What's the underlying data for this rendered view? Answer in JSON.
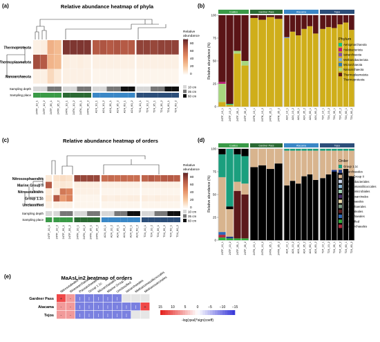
{
  "colors": {
    "heat": [
      "#fdf5ec",
      "#f7c79d",
      "#e48d63",
      "#b55a45",
      "#6b2a2a"
    ],
    "place": {
      "Coatico": "#3a9a47",
      "Gardner Pass": "#2b6a34",
      "Atacama": "#3a87c6",
      "Tejos": "#2c4e79"
    },
    "depth": {
      "10 cm": "#d7d7d7",
      "35 cm": "#777777",
      "60 cm": "#101010"
    },
    "phylum": {
      "Aenigmarchaeota": "#18c178",
      "Halobacteriota": "#c1197b",
      "Iainarchaeota": "#7b4fb1",
      "Methanobacteriota": "#7fa8d8",
      "Micrarchaeota": "#2c78b5",
      "Nanoarchaeota": "#a7d67f",
      "Thermoplasmatota": "#5a1416",
      "Thermoproteota": "#cfae1a"
    },
    "order": {
      "Group 1.1c": "#1b9f7e",
      "Iainarchaeales": "#213a86",
      "Marine Group II": "#d8b48e",
      "Methanobacteriales": "#cbd5ea",
      "Methanomassiliicoccales": "#8db9d9",
      "Methanomicrobiales": "#9ed0b4",
      "Methanosarcinales": "#4b2d6b",
      "Micrarchaeales": "#e9d9a9",
      "Nitrosophaerales": "#7f9f87",
      "Nitrosotaleales": "#5c1a1c",
      "Pacearchaeales": "#2c68b8",
      "Unclassified": "#33ac3d",
      "Woesearchaeales": "#b02a40"
    }
  },
  "panel_a": {
    "tag": "(a)",
    "title": "Relative abundance heatmap of phyla",
    "legend_title": [
      "Relative",
      "abundance",
      "(%)"
    ],
    "legend_ticks": [
      "80",
      "60",
      "40",
      "20",
      "0"
    ],
    "rows": [
      "Thermoproteota",
      "Thermoplasmatota",
      "Nanoarchaeota"
    ],
    "samples": [
      "24TF_10_1",
      "24TF_10_2",
      "24TF_35_1",
      "24TF_35_2",
      "24TK_10_1",
      "24TK_10_2",
      "24TK_35_1",
      "24TK_35_2",
      "A24_10_1",
      "A24_10_2",
      "A24_35_1",
      "A24_35_2",
      "A24_60_1",
      "A24_60_2",
      "T24_10_1",
      "T24_10_2",
      "T24_35_1",
      "T24_35_2",
      "T24_60_1",
      "T24_60_2"
    ],
    "depth_legend": [
      "10 cm",
      "35 cm",
      "60 cm"
    ],
    "row_labels": [
      "Sampling depth",
      "Sampling place"
    ]
  },
  "panel_b": {
    "tag": "(b)",
    "ylabel": "Relative abundance (%)",
    "yticks": [
      "100",
      "75",
      "50",
      "25",
      "0"
    ],
    "groups": [
      "Coatico",
      "Gardner Pass",
      "Atacama",
      "Tejos"
    ],
    "legend_title": "Phylum",
    "samples": [
      [
        "24TF_10_1",
        "24TF_10_2",
        "24TF_35_1",
        "24TF_35_2"
      ],
      [
        "24TK_10_1",
        "24TK_10_2",
        "24TK_35_1",
        "24TK_35_2"
      ],
      [
        "A24_10_1",
        "A24_10_2",
        "A24_35_1",
        "A24_35_2",
        "A24_60_1",
        "A24_60_2"
      ],
      [
        "T24_10_1",
        "T24_10_2",
        "T24_35_1",
        "T24_35_2",
        "T24_60_1",
        "T24_60_2"
      ]
    ]
  },
  "panel_c": {
    "tag": "(c)",
    "title": "Relative abundance heatmap of orders",
    "rows": [
      "Nitrososphaerales",
      "Marine Group II",
      "Nitrosotaleales",
      "Group 1.1c",
      "Unclassified"
    ],
    "legend_title": [
      "Relative",
      "abundance",
      "(%)"
    ],
    "legend_ticks": [
      "80",
      "60",
      "40",
      "20",
      "0"
    ],
    "samples": [
      "24TF_10_1",
      "24TF_10_2",
      "24TF_35_1",
      "24TF_35_2",
      "24TK_10_1",
      "24TK_10_2",
      "24TK_35_1",
      "24TK_35_2",
      "A24_10_1",
      "A24_10_2",
      "A24_35_1",
      "A24_35_2",
      "A24_60_1",
      "A24_60_2",
      "T24_10_1",
      "T24_10_2",
      "T24_35_1",
      "T24_35_2",
      "T24_60_1",
      "T24_60_2"
    ],
    "depth_legend": [
      "10 cm",
      "35 cm",
      "60 cm"
    ],
    "row_labels": [
      "Sampling depth",
      "Sampling place"
    ]
  },
  "panel_d": {
    "tag": "(d)",
    "ylabel": "Relative abundance (%)",
    "yticks": [
      "100",
      "75",
      "50",
      "25",
      "0"
    ],
    "groups": [
      "Coatico",
      "Gardner Pass",
      "Atacama",
      "Tejos"
    ],
    "legend_title": "Order",
    "samples": [
      [
        "24TF_10_1",
        "24TF_10_2",
        "24TF_35_1",
        "24TF_35_2"
      ],
      [
        "24TK_10_1",
        "24TK_10_2",
        "24TK_35_1",
        "24TK_35_2"
      ],
      [
        "A24_10_1",
        "A24_10_2",
        "A24_35_1",
        "A24_35_2",
        "A24_60_1",
        "A24_60_2"
      ],
      [
        "T24_10_1",
        "T24_10_2",
        "T24_35_1",
        "T24_35_2",
        "T24_60_1",
        "T24_60_2"
      ]
    ]
  },
  "panel_e": {
    "tag": "(e)",
    "title": "MaAsLin2 heatmap of orders",
    "rows": [
      "Gardner Pass",
      "Atacama",
      "Tejos"
    ],
    "cols": [
      "Nitrosotaleales",
      "Woesearchaeales",
      "Pacearchaeales",
      "Group 1.1c",
      "Micrarchaeales",
      "Marine Group II",
      "Unclassified",
      "Iainarchaeales",
      "Methanomassiliicoccales",
      "Methanosarcinales"
    ],
    "cells": [
      [
        "+",
        "-",
        "l",
        "l",
        "l",
        "l",
        "l",
        "",
        "",
        ""
      ],
      [
        "-",
        "-",
        "l",
        "l",
        "l",
        "l",
        "l",
        "l",
        "l",
        "+"
      ],
      [
        "-",
        "-",
        "l",
        "l",
        "l",
        "l",
        "l",
        "l",
        "",
        ""
      ]
    ],
    "legend_ticks": [
      "15",
      "10",
      "5",
      "0",
      "−5",
      "−10",
      "−15"
    ],
    "legend_label": "-log(qval)*sign(coeff)"
  }
}
